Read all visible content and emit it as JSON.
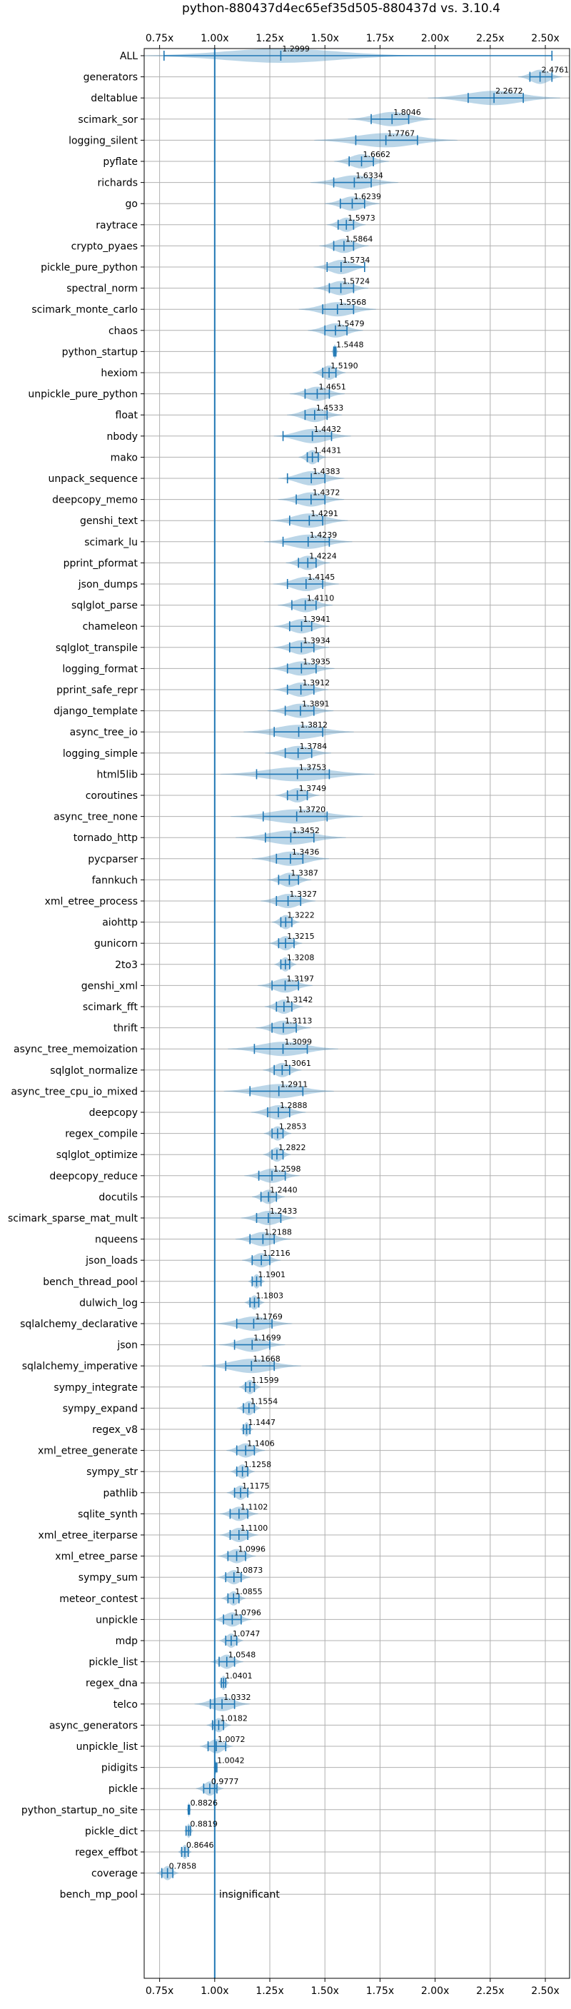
{
  "chart_data": {
    "type": "violin",
    "title": "python-880437d4ec65ef35d505-880437d vs. 3.10.4",
    "xlim": [
      0.68,
      2.61
    ],
    "xticks": [
      0.75,
      1.0,
      1.25,
      1.5,
      1.75,
      2.0,
      2.25,
      2.5
    ],
    "xtick_labels": [
      "0.75x",
      "1.00x",
      "1.25x",
      "1.50x",
      "1.75x",
      "2.00x",
      "2.25x",
      "2.50x"
    ],
    "reference_value": 1.0,
    "insignificant_label": "insignificant",
    "grid": true,
    "benchmarks": [
      {
        "name": "ALL",
        "median": 1.2999,
        "min": 0.77,
        "max": 2.53,
        "spread": 0.25,
        "label": "1.2999"
      },
      {
        "name": "generators",
        "median": 2.4761,
        "min": 2.43,
        "max": 2.53,
        "spread": 0.04,
        "label": "2.4761"
      },
      {
        "name": "deltablue",
        "median": 2.2672,
        "min": 2.15,
        "max": 2.4,
        "spread": 0.12,
        "label": "2.2672"
      },
      {
        "name": "scimark_sor",
        "median": 1.8046,
        "min": 1.71,
        "max": 1.88,
        "spread": 0.08,
        "label": "1.8046"
      },
      {
        "name": "logging_silent",
        "median": 1.7767,
        "min": 1.64,
        "max": 1.92,
        "spread": 0.13,
        "label": "1.7767"
      },
      {
        "name": "pyflate",
        "median": 1.6662,
        "min": 1.61,
        "max": 1.72,
        "spread": 0.05,
        "label": "1.6662"
      },
      {
        "name": "richards",
        "median": 1.6334,
        "min": 1.54,
        "max": 1.71,
        "spread": 0.08,
        "label": "1.6334"
      },
      {
        "name": "go",
        "median": 1.6239,
        "min": 1.57,
        "max": 1.68,
        "spread": 0.05,
        "label": "1.6239"
      },
      {
        "name": "raytrace",
        "median": 1.5973,
        "min": 1.56,
        "max": 1.63,
        "spread": 0.035,
        "label": "1.5973"
      },
      {
        "name": "crypto_pyaes",
        "median": 1.5864,
        "min": 1.54,
        "max": 1.63,
        "spread": 0.045,
        "label": "1.5864"
      },
      {
        "name": "pickle_pure_python",
        "median": 1.5734,
        "min": 1.51,
        "max": 1.68,
        "spread": 0.05,
        "label": "1.5734"
      },
      {
        "name": "spectral_norm",
        "median": 1.5724,
        "min": 1.52,
        "max": 1.63,
        "spread": 0.05,
        "label": "1.5724"
      },
      {
        "name": "scimark_monte_carlo",
        "median": 1.5568,
        "min": 1.49,
        "max": 1.63,
        "spread": 0.07,
        "label": "1.5568"
      },
      {
        "name": "chaos",
        "median": 1.5479,
        "min": 1.5,
        "max": 1.6,
        "spread": 0.05,
        "label": "1.5479"
      },
      {
        "name": "python_startup",
        "median": 1.5448,
        "min": 1.54,
        "max": 1.55,
        "spread": 0.006,
        "label": "1.5448"
      },
      {
        "name": "hexiom",
        "median": 1.519,
        "min": 1.49,
        "max": 1.55,
        "spread": 0.03,
        "label": "1.5190"
      },
      {
        "name": "unpickle_pure_python",
        "median": 1.4651,
        "min": 1.41,
        "max": 1.52,
        "spread": 0.05,
        "label": "1.4651"
      },
      {
        "name": "float",
        "median": 1.4533,
        "min": 1.41,
        "max": 1.51,
        "spread": 0.05,
        "label": "1.4533"
      },
      {
        "name": "nbody",
        "median": 1.4432,
        "min": 1.31,
        "max": 1.53,
        "spread": 0.07,
        "label": "1.4432"
      },
      {
        "name": "mako",
        "median": 1.4431,
        "min": 1.42,
        "max": 1.47,
        "spread": 0.025,
        "label": "1.4431"
      },
      {
        "name": "unpack_sequence",
        "median": 1.4383,
        "min": 1.33,
        "max": 1.5,
        "spread": 0.06,
        "label": "1.4383"
      },
      {
        "name": "deepcopy_memo",
        "median": 1.4372,
        "min": 1.37,
        "max": 1.5,
        "spread": 0.06,
        "label": "1.4372"
      },
      {
        "name": "genshi_text",
        "median": 1.4291,
        "min": 1.34,
        "max": 1.49,
        "spread": 0.07,
        "label": "1.4291"
      },
      {
        "name": "scimark_lu",
        "median": 1.4239,
        "min": 1.31,
        "max": 1.52,
        "spread": 0.08,
        "label": "1.4239"
      },
      {
        "name": "pprint_pformat",
        "median": 1.4224,
        "min": 1.38,
        "max": 1.46,
        "spread": 0.04,
        "label": "1.4224"
      },
      {
        "name": "json_dumps",
        "median": 1.4145,
        "min": 1.33,
        "max": 1.49,
        "spread": 0.06,
        "label": "1.4145"
      },
      {
        "name": "sqlglot_parse",
        "median": 1.411,
        "min": 1.35,
        "max": 1.46,
        "spread": 0.05,
        "label": "1.4110"
      },
      {
        "name": "chameleon",
        "median": 1.3941,
        "min": 1.34,
        "max": 1.44,
        "spread": 0.05,
        "label": "1.3941"
      },
      {
        "name": "sqlglot_transpile",
        "median": 1.3934,
        "min": 1.34,
        "max": 1.45,
        "spread": 0.05,
        "label": "1.3934"
      },
      {
        "name": "logging_format",
        "median": 1.3935,
        "min": 1.33,
        "max": 1.46,
        "spread": 0.06,
        "label": "1.3935"
      },
      {
        "name": "pprint_safe_repr",
        "median": 1.3912,
        "min": 1.33,
        "max": 1.45,
        "spread": 0.05,
        "label": "1.3912"
      },
      {
        "name": "django_template",
        "median": 1.3891,
        "min": 1.32,
        "max": 1.45,
        "spread": 0.06,
        "label": "1.3891"
      },
      {
        "name": "async_tree_io",
        "median": 1.3812,
        "min": 1.27,
        "max": 1.49,
        "spread": 0.1,
        "label": "1.3812"
      },
      {
        "name": "logging_simple",
        "median": 1.3784,
        "min": 1.32,
        "max": 1.44,
        "spread": 0.06,
        "label": "1.3784"
      },
      {
        "name": "html5lib",
        "median": 1.3753,
        "min": 1.19,
        "max": 1.52,
        "spread": 0.14,
        "label": "1.3753"
      },
      {
        "name": "coroutines",
        "median": 1.3749,
        "min": 1.33,
        "max": 1.42,
        "spread": 0.04,
        "label": "1.3749"
      },
      {
        "name": "async_tree_none",
        "median": 1.372,
        "min": 1.22,
        "max": 1.51,
        "spread": 0.12,
        "label": "1.3720"
      },
      {
        "name": "tornado_http",
        "median": 1.3452,
        "min": 1.23,
        "max": 1.45,
        "spread": 0.1,
        "label": "1.3452"
      },
      {
        "name": "pycparser",
        "median": 1.3436,
        "min": 1.28,
        "max": 1.4,
        "spread": 0.07,
        "label": "1.3436"
      },
      {
        "name": "fannkuch",
        "median": 1.3387,
        "min": 1.29,
        "max": 1.38,
        "spread": 0.04,
        "label": "1.3387"
      },
      {
        "name": "xml_etree_process",
        "median": 1.3327,
        "min": 1.28,
        "max": 1.39,
        "spread": 0.05,
        "label": "1.3327"
      },
      {
        "name": "aiohttp",
        "median": 1.3222,
        "min": 1.3,
        "max": 1.35,
        "spread": 0.025,
        "label": "1.3222"
      },
      {
        "name": "gunicorn",
        "median": 1.3215,
        "min": 1.29,
        "max": 1.36,
        "spread": 0.03,
        "label": "1.3215"
      },
      {
        "name": "2to3",
        "median": 1.3208,
        "min": 1.3,
        "max": 1.34,
        "spread": 0.02,
        "label": "1.3208"
      },
      {
        "name": "genshi_xml",
        "median": 1.3197,
        "min": 1.26,
        "max": 1.38,
        "spread": 0.05,
        "label": "1.3197"
      },
      {
        "name": "scimark_fft",
        "median": 1.3142,
        "min": 1.28,
        "max": 1.35,
        "spread": 0.035,
        "label": "1.3142"
      },
      {
        "name": "thrift",
        "median": 1.3113,
        "min": 1.26,
        "max": 1.37,
        "spread": 0.05,
        "label": "1.3113"
      },
      {
        "name": "async_tree_memoization",
        "median": 1.3099,
        "min": 1.18,
        "max": 1.42,
        "spread": 0.1,
        "label": "1.3099"
      },
      {
        "name": "sqlglot_normalize",
        "median": 1.3061,
        "min": 1.27,
        "max": 1.34,
        "spread": 0.035,
        "label": "1.3061"
      },
      {
        "name": "async_tree_cpu_io_mixed",
        "median": 1.2911,
        "min": 1.16,
        "max": 1.4,
        "spread": 0.1,
        "label": "1.2911"
      },
      {
        "name": "deepcopy",
        "median": 1.2888,
        "min": 1.24,
        "max": 1.34,
        "spread": 0.05,
        "label": "1.2888"
      },
      {
        "name": "regex_compile",
        "median": 1.2853,
        "min": 1.26,
        "max": 1.31,
        "spread": 0.025,
        "label": "1.2853"
      },
      {
        "name": "sqlglot_optimize",
        "median": 1.2822,
        "min": 1.26,
        "max": 1.31,
        "spread": 0.025,
        "label": "1.2822"
      },
      {
        "name": "deepcopy_reduce",
        "median": 1.2598,
        "min": 1.2,
        "max": 1.32,
        "spread": 0.05,
        "label": "1.2598"
      },
      {
        "name": "docutils",
        "median": 1.244,
        "min": 1.21,
        "max": 1.28,
        "spread": 0.03,
        "label": "1.2440"
      },
      {
        "name": "scimark_sparse_mat_mult",
        "median": 1.2433,
        "min": 1.19,
        "max": 1.3,
        "spread": 0.05,
        "label": "1.2433"
      },
      {
        "name": "nqueens",
        "median": 1.2188,
        "min": 1.16,
        "max": 1.27,
        "spread": 0.05,
        "label": "1.2188"
      },
      {
        "name": "json_loads",
        "median": 1.2116,
        "min": 1.17,
        "max": 1.25,
        "spread": 0.035,
        "label": "1.2116"
      },
      {
        "name": "bench_thread_pool",
        "median": 1.1901,
        "min": 1.17,
        "max": 1.21,
        "spread": 0.015,
        "label": "1.1901"
      },
      {
        "name": "dulwich_log",
        "median": 1.1803,
        "min": 1.16,
        "max": 1.2,
        "spread": 0.018,
        "label": "1.1803"
      },
      {
        "name": "sqlalchemy_declarative",
        "median": 1.1769,
        "min": 1.1,
        "max": 1.26,
        "spread": 0.07,
        "label": "1.1769"
      },
      {
        "name": "json",
        "median": 1.1699,
        "min": 1.09,
        "max": 1.25,
        "spread": 0.06,
        "label": "1.1699"
      },
      {
        "name": "sqlalchemy_imperative",
        "median": 1.1668,
        "min": 1.05,
        "max": 1.27,
        "spread": 0.09,
        "label": "1.1668"
      },
      {
        "name": "sympy_integrate",
        "median": 1.1599,
        "min": 1.14,
        "max": 1.18,
        "spread": 0.02,
        "label": "1.1599"
      },
      {
        "name": "sympy_expand",
        "median": 1.1554,
        "min": 1.13,
        "max": 1.18,
        "spread": 0.022,
        "label": "1.1554"
      },
      {
        "name": "regex_v8",
        "median": 1.1447,
        "min": 1.13,
        "max": 1.16,
        "spread": 0.012,
        "label": "1.1447"
      },
      {
        "name": "xml_etree_generate",
        "median": 1.1406,
        "min": 1.1,
        "max": 1.18,
        "spread": 0.035,
        "label": "1.1406"
      },
      {
        "name": "sympy_str",
        "median": 1.1258,
        "min": 1.1,
        "max": 1.15,
        "spread": 0.022,
        "label": "1.1258"
      },
      {
        "name": "pathlib",
        "median": 1.1175,
        "min": 1.09,
        "max": 1.15,
        "spread": 0.025,
        "label": "1.1175"
      },
      {
        "name": "sqlite_synth",
        "median": 1.1102,
        "min": 1.07,
        "max": 1.15,
        "spread": 0.035,
        "label": "1.1102"
      },
      {
        "name": "xml_etree_iterparse",
        "median": 1.11,
        "min": 1.07,
        "max": 1.15,
        "spread": 0.035,
        "label": "1.1100"
      },
      {
        "name": "xml_etree_parse",
        "median": 1.0996,
        "min": 1.06,
        "max": 1.14,
        "spread": 0.035,
        "label": "1.0996"
      },
      {
        "name": "sympy_sum",
        "median": 1.0873,
        "min": 1.05,
        "max": 1.12,
        "spread": 0.03,
        "label": "1.0873"
      },
      {
        "name": "meteor_contest",
        "median": 1.0855,
        "min": 1.06,
        "max": 1.11,
        "spread": 0.022,
        "label": "1.0855"
      },
      {
        "name": "unpickle",
        "median": 1.0796,
        "min": 1.04,
        "max": 1.12,
        "spread": 0.035,
        "label": "1.0796"
      },
      {
        "name": "mdp",
        "median": 1.0747,
        "min": 1.05,
        "max": 1.1,
        "spread": 0.022,
        "label": "1.0747"
      },
      {
        "name": "pickle_list",
        "median": 1.0548,
        "min": 1.02,
        "max": 1.09,
        "spread": 0.03,
        "label": "1.0548"
      },
      {
        "name": "regex_dna",
        "median": 1.0401,
        "min": 1.03,
        "max": 1.05,
        "spread": 0.01,
        "label": "1.0401"
      },
      {
        "name": "telco",
        "median": 1.0332,
        "min": 0.98,
        "max": 1.09,
        "spread": 0.05,
        "label": "1.0332"
      },
      {
        "name": "async_generators",
        "median": 1.0182,
        "min": 0.99,
        "max": 1.04,
        "spread": 0.022,
        "label": "1.0182"
      },
      {
        "name": "unpickle_list",
        "median": 1.0072,
        "min": 0.97,
        "max": 1.05,
        "spread": 0.03,
        "label": "1.0072"
      },
      {
        "name": "pidigits",
        "median": 1.0042,
        "min": 1.0,
        "max": 1.01,
        "spread": 0.004,
        "label": "1.0042"
      },
      {
        "name": "pickle",
        "median": 0.9777,
        "min": 0.95,
        "max": 1.01,
        "spread": 0.025,
        "label": "0.9777"
      },
      {
        "name": "python_startup_no_site",
        "median": 0.8826,
        "min": 0.88,
        "max": 0.886,
        "spread": 0.004,
        "label": "0.8826"
      },
      {
        "name": "pickle_dict",
        "median": 0.8819,
        "min": 0.87,
        "max": 0.89,
        "spread": 0.008,
        "label": "0.8819"
      },
      {
        "name": "regex_effbot",
        "median": 0.8646,
        "min": 0.85,
        "max": 0.88,
        "spread": 0.012,
        "label": "0.8646"
      },
      {
        "name": "coverage",
        "median": 0.7858,
        "min": 0.76,
        "max": 0.81,
        "spread": 0.02,
        "label": "0.7858"
      },
      {
        "name": "bench_mp_pool",
        "median": null,
        "min": null,
        "max": null,
        "spread": null,
        "label": ""
      }
    ]
  }
}
